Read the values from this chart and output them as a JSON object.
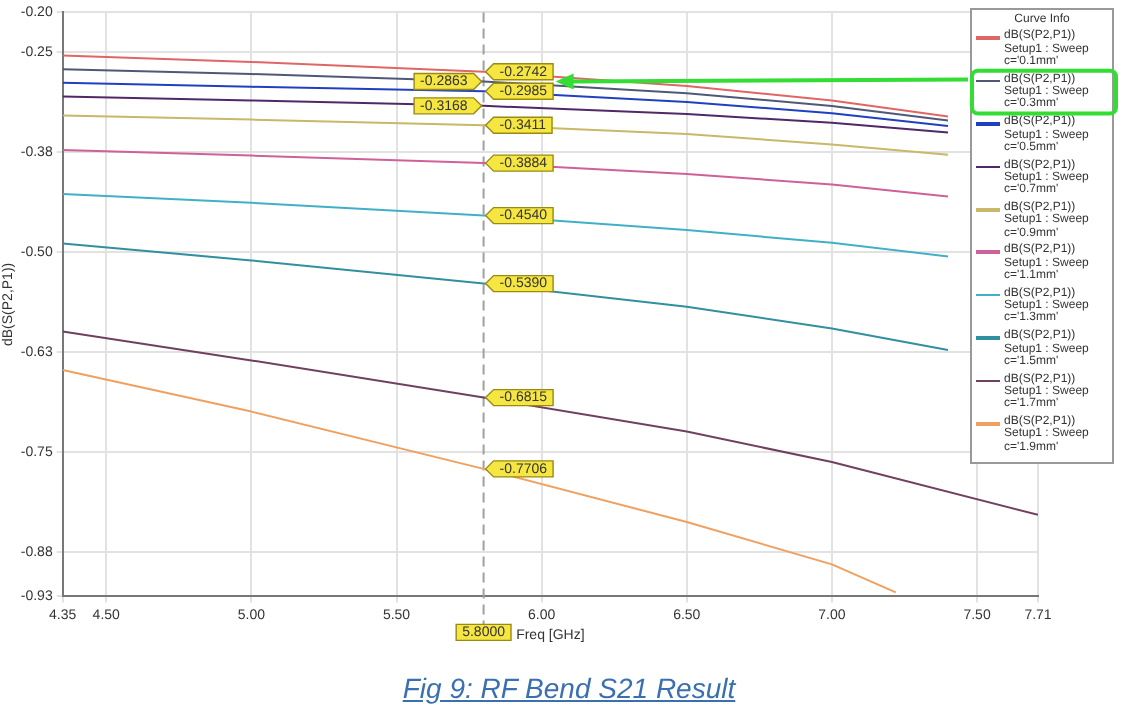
{
  "chart_data": {
    "type": "line",
    "xlabel": "Freq [GHz]",
    "ylabel": "dB(S(P2,P1))",
    "legend_title": "Curve Info",
    "legend": "top right",
    "grid": true,
    "marker": "none",
    "line_style": "solid",
    "xlim": [
      4.35,
      7.71
    ],
    "xticks": [
      {
        "value": 4.35,
        "label": "4.35"
      },
      {
        "value": 4.5,
        "label": "4.50"
      },
      {
        "value": 5,
        "label": "5.00"
      },
      {
        "value": 5.5,
        "label": "5.50"
      },
      {
        "value": 6,
        "label": "6.00"
      },
      {
        "value": 6.5,
        "label": "6.50"
      },
      {
        "value": 7,
        "label": "7.00"
      },
      {
        "value": 7.5,
        "label": "7.50"
      },
      {
        "value": 7.71,
        "label": "7.71"
      }
    ],
    "ylim": [
      -0.93,
      -0.2
    ],
    "yticks": [
      {
        "value": -0.2,
        "label": "-0.20"
      },
      {
        "value": -0.25,
        "label": "-0.25"
      },
      {
        "value": -0.375,
        "label": "-0.38"
      },
      {
        "value": -0.5,
        "label": "-0.50"
      },
      {
        "value": -0.625,
        "label": "-0.63"
      },
      {
        "value": -0.75,
        "label": "-0.75"
      },
      {
        "value": -0.875,
        "label": "-0.88"
      },
      {
        "value": -0.93,
        "label": "-0.93"
      }
    ],
    "ref_lines": [
      {
        "axis": "x",
        "value": 5.8,
        "label": "5.8000",
        "color": "#a0a0a0",
        "line_style": "dashed"
      }
    ],
    "annotations": [
      "Fig 9: RF Bend S21 Result"
    ],
    "series": [
      {
        "name": "dB(S(P2,P1)) Setup1 : Sweep c='0.1mm'",
        "color": "#e06666",
        "x": [
          4.35,
          5.0,
          5.8,
          6.5,
          7.0,
          7.4
        ],
        "values": [
          -0.254,
          -0.262,
          -0.2742,
          -0.292,
          -0.31,
          -0.33
        ],
        "value_labels": [
          null,
          null,
          "-0.2742",
          null,
          null,
          null
        ]
      },
      {
        "name": "dB(S(P2,P1)) Setup1 : Sweep c='0.3mm'",
        "color": "#505878",
        "x": [
          4.35,
          5.0,
          5.8,
          6.5,
          7.0,
          7.4
        ],
        "values": [
          -0.271,
          -0.277,
          -0.2863,
          -0.301,
          -0.317,
          -0.335
        ],
        "value_labels": [
          null,
          null,
          "-0.2863",
          null,
          null,
          null
        ]
      },
      {
        "name": "dB(S(P2,P1)) Setup1 : Sweep c='0.5mm'",
        "color": "#2040c0",
        "x": [
          4.35,
          5.0,
          5.8,
          6.5,
          7.0,
          7.4
        ],
        "values": [
          -0.288,
          -0.293,
          -0.2985,
          -0.312,
          -0.326,
          -0.342
        ],
        "value_labels": [
          null,
          null,
          "-0.2985",
          null,
          null,
          null
        ]
      },
      {
        "name": "dB(S(P2,P1)) Setup1 : Sweep c='0.7mm'",
        "color": "#502868",
        "x": [
          4.35,
          5.0,
          5.8,
          6.5,
          7.0,
          7.4
        ],
        "values": [
          -0.305,
          -0.31,
          -0.3168,
          -0.327,
          -0.338,
          -0.35
        ],
        "value_labels": [
          null,
          null,
          "-0.3168",
          null,
          null,
          null
        ]
      },
      {
        "name": "dB(S(P2,P1)) Setup1 : Sweep c='0.9mm'",
        "color": "#c8b868",
        "x": [
          4.35,
          5.0,
          5.8,
          6.5,
          7.0,
          7.4
        ],
        "values": [
          -0.329,
          -0.334,
          -0.3411,
          -0.352,
          -0.365,
          -0.378
        ],
        "value_labels": [
          null,
          null,
          "-0.3411",
          null,
          null,
          null
        ]
      },
      {
        "name": "dB(S(P2,P1)) Setup1 : Sweep c='1.1mm'",
        "color": "#d0609a",
        "x": [
          4.35,
          5.0,
          5.8,
          6.5,
          7.0,
          7.4
        ],
        "values": [
          -0.372,
          -0.379,
          -0.3884,
          -0.402,
          -0.415,
          -0.43
        ],
        "value_labels": [
          null,
          null,
          "-0.3884",
          null,
          null,
          null
        ]
      },
      {
        "name": "dB(S(P2,P1)) Setup1 : Sweep c='1.3mm'",
        "color": "#40b0c8",
        "x": [
          4.35,
          5.0,
          5.8,
          6.5,
          7.0,
          7.4
        ],
        "values": [
          -0.427,
          -0.438,
          -0.454,
          -0.472,
          -0.488,
          -0.505
        ],
        "value_labels": [
          null,
          null,
          "-0.4540",
          null,
          null,
          null
        ]
      },
      {
        "name": "dB(S(P2,P1)) Setup1 : Sweep c='1.5mm'",
        "color": "#3090a0",
        "x": [
          4.35,
          5.0,
          5.8,
          6.5,
          7.0,
          7.4
        ],
        "values": [
          -0.489,
          -0.51,
          -0.539,
          -0.568,
          -0.595,
          -0.622
        ],
        "value_labels": [
          null,
          null,
          "-0.5390",
          null,
          null,
          null
        ]
      },
      {
        "name": "dB(S(P2,P1)) Setup1 : Sweep c='1.7mm'",
        "color": "#704060",
        "x": [
          4.35,
          5.0,
          5.8,
          6.5,
          7.0,
          7.71
        ],
        "values": [
          -0.599,
          -0.635,
          -0.6815,
          -0.724,
          -0.762,
          -0.828
        ],
        "value_labels": [
          null,
          null,
          "-0.6815",
          null,
          null,
          null
        ]
      },
      {
        "name": "dB(S(P2,P1)) Setup1 : Sweep c='1.9mm'",
        "color": "#f0a060",
        "x": [
          4.35,
          5.0,
          5.8,
          6.5,
          7.0,
          7.22
        ],
        "values": [
          -0.647,
          -0.699,
          -0.7706,
          -0.837,
          -0.89,
          -0.925
        ],
        "value_labels": [
          null,
          null,
          "-0.7706",
          null,
          null,
          null
        ]
      }
    ]
  }
}
